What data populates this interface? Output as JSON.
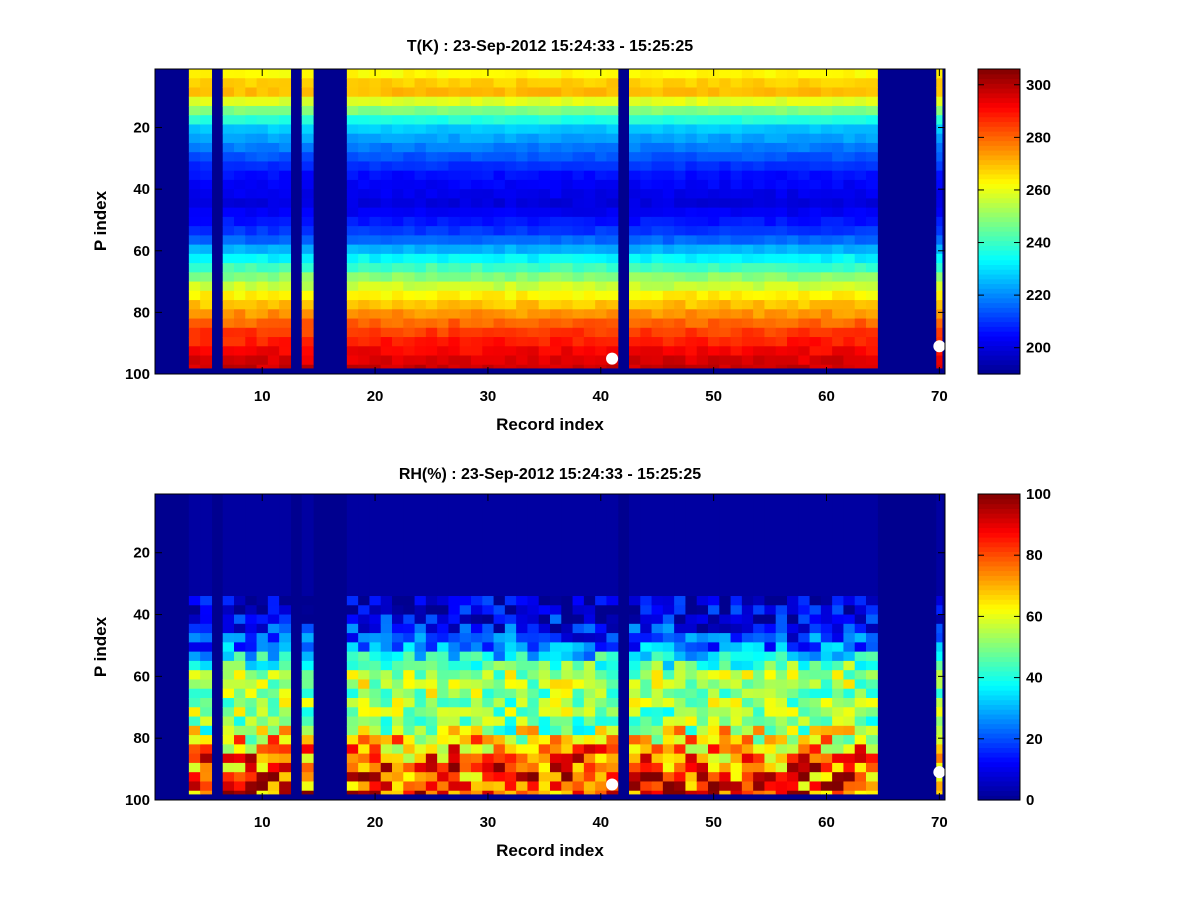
{
  "colormap": [
    "#00008f",
    "#0000ff",
    "#00ffff",
    "#ffff00",
    "#ff0000",
    "#800000"
  ],
  "marker_color": "#ffffff",
  "chart_data": [
    {
      "type": "heatmap",
      "title": "T(K) : 23-Sep-2012 15:24:33 - 15:25:25",
      "xlabel": "Record index",
      "ylabel": "P index",
      "xlim": [
        0.5,
        70.5
      ],
      "ylim": [
        1,
        100
      ],
      "xticks": [
        10,
        20,
        30,
        40,
        50,
        60,
        70
      ],
      "xtick_labels": [
        "10",
        "20",
        "30",
        "40",
        "50",
        "60",
        "70"
      ],
      "yticks": [
        20,
        40,
        60,
        80,
        100
      ],
      "ytick_labels": [
        "20",
        "40",
        "60",
        "80",
        "100"
      ],
      "colorbar": {
        "clim": [
          190,
          306
        ],
        "ticks": [
          200,
          220,
          240,
          260,
          280,
          300
        ],
        "tick_labels": [
          "200",
          "220",
          "240",
          "260",
          "280",
          "300"
        ]
      },
      "valid_records": [
        4,
        5,
        7,
        8,
        9,
        10,
        11,
        12,
        14,
        18,
        19,
        20,
        21,
        22,
        23,
        24,
        25,
        26,
        27,
        28,
        29,
        30,
        31,
        32,
        33,
        34,
        35,
        36,
        37,
        38,
        39,
        40,
        41,
        43,
        44,
        45,
        46,
        47,
        48,
        49,
        50,
        51,
        52,
        53,
        54,
        55,
        56,
        57,
        58,
        59,
        60,
        61,
        62,
        63,
        64,
        70
      ],
      "profile_p_index": [
        2,
        8,
        20,
        35,
        45,
        55,
        65,
        75,
        85,
        95,
        98
      ],
      "profile_value": [
        262,
        272,
        228,
        206,
        200,
        212,
        240,
        265,
        283,
        295,
        298
      ],
      "markers": [
        {
          "x": 41,
          "y": 95
        },
        {
          "x": 70,
          "y": 91
        }
      ]
    },
    {
      "type": "heatmap",
      "title": "RH(%) : 23-Sep-2012 15:24:33 - 15:25:25",
      "xlabel": "Record index",
      "ylabel": "P index",
      "xlim": [
        0.5,
        70.5
      ],
      "ylim": [
        1,
        100
      ],
      "xticks": [
        10,
        20,
        30,
        40,
        50,
        60,
        70
      ],
      "xtick_labels": [
        "10",
        "20",
        "30",
        "40",
        "50",
        "60",
        "70"
      ],
      "yticks": [
        20,
        40,
        60,
        80,
        100
      ],
      "ytick_labels": [
        "20",
        "40",
        "60",
        "80",
        "100"
      ],
      "colorbar": {
        "clim": [
          0,
          100
        ],
        "ticks": [
          0,
          20,
          40,
          60,
          80,
          100
        ],
        "tick_labels": [
          "0",
          "20",
          "40",
          "60",
          "80",
          "100"
        ]
      },
      "valid_records": [
        4,
        5,
        7,
        8,
        9,
        10,
        11,
        12,
        14,
        18,
        19,
        20,
        21,
        22,
        23,
        24,
        25,
        26,
        27,
        28,
        29,
        30,
        31,
        32,
        33,
        34,
        35,
        36,
        37,
        38,
        39,
        40,
        41,
        43,
        44,
        45,
        46,
        47,
        48,
        49,
        50,
        51,
        52,
        53,
        54,
        55,
        56,
        57,
        58,
        59,
        60,
        61,
        62,
        63,
        64,
        70
      ],
      "profile_p_index": [
        2,
        30,
        40,
        50,
        55,
        60,
        68,
        75,
        82,
        90,
        98
      ],
      "profile_value": [
        2,
        4,
        8,
        22,
        40,
        55,
        52,
        50,
        70,
        80,
        82
      ],
      "markers": [
        {
          "x": 41,
          "y": 95
        },
        {
          "x": 70,
          "y": 91
        }
      ]
    }
  ]
}
